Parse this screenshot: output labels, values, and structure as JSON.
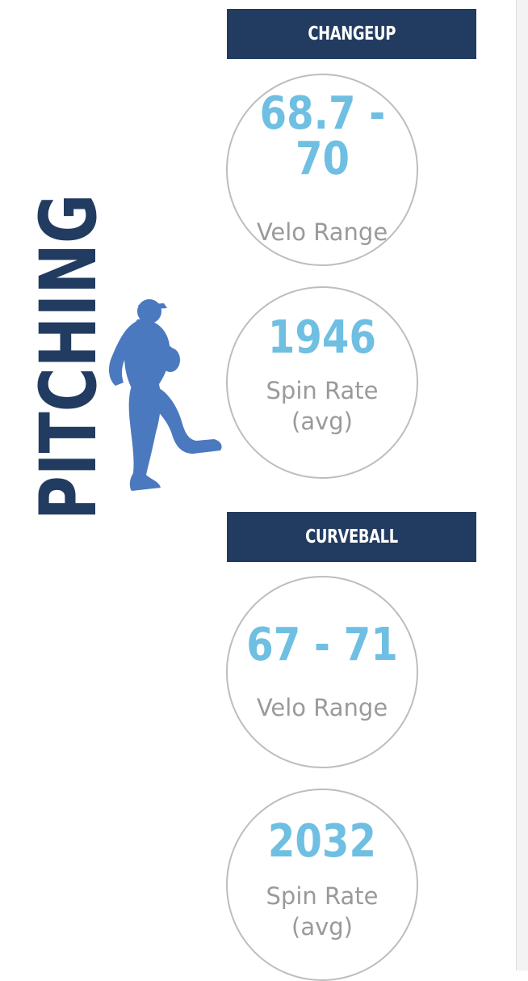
{
  "section_title": "PITCHING",
  "icon": "pitcher-silhouette-icon",
  "colors": {
    "banner": "#223b60",
    "value": "#6fbfe2",
    "label": "#9a9a9a",
    "icon": "#4b79bf"
  },
  "pitches": [
    {
      "name": "CHANGEUP",
      "velo": {
        "value": "68.7 -\n70",
        "label": "Velo Range"
      },
      "spin": {
        "value": "1946",
        "label": "Spin Rate\n(avg)"
      }
    },
    {
      "name": "CURVEBALL",
      "velo": {
        "value": "67 - 71",
        "label": "Velo Range"
      },
      "spin": {
        "value": "2032",
        "label": "Spin Rate\n(avg)"
      }
    }
  ]
}
